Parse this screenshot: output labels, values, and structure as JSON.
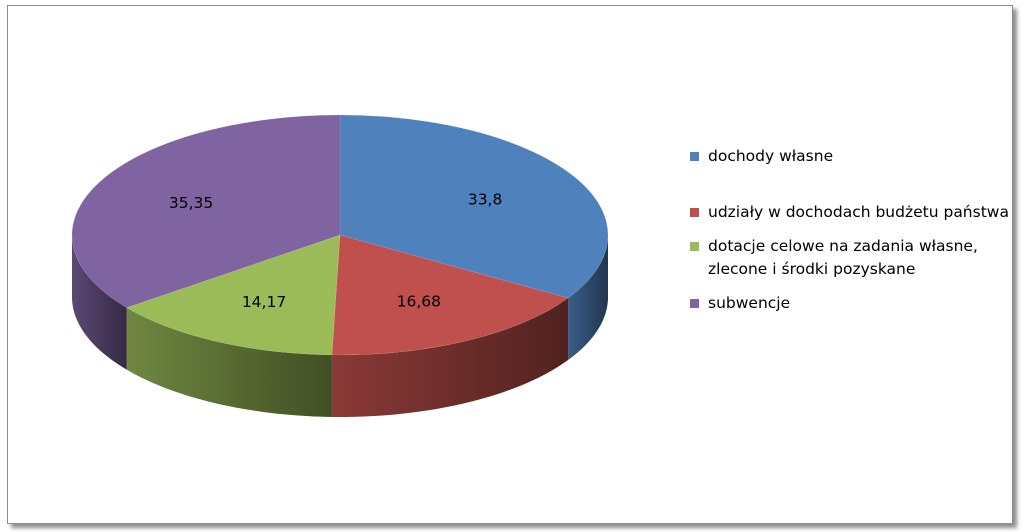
{
  "chart_data": {
    "type": "pie",
    "title": "",
    "style": "3d",
    "legend_position": "right",
    "slices": [
      {
        "label": "dochody własne",
        "value": 33.8,
        "display": "33,8",
        "color": "#4f81bd"
      },
      {
        "label": "udziały w dochodach budżetu państwa",
        "value": 16.68,
        "display": "16,68",
        "color": "#c0504d"
      },
      {
        "label": "dotacje celowe na zadania własne, zlecone i środki pozyskane",
        "value": 14.17,
        "display": "14,17",
        "color": "#9bbb59"
      },
      {
        "label": "subwencje",
        "value": 35.35,
        "display": "35,35",
        "color": "#8064a2"
      }
    ]
  }
}
